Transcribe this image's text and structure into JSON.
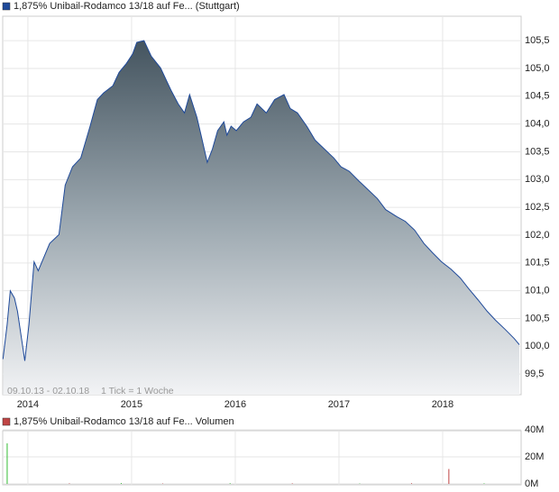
{
  "chart_data": [
    {
      "type": "area",
      "series": [
        {
          "name": "1,875% Unibail-Rodamco 13/18 auf Fe... (Stuttgart)",
          "color": "#1f4a9a",
          "x": [
            2013.76,
            2013.8,
            2013.83,
            2013.87,
            2013.9,
            2013.97,
            2014.01,
            2014.06,
            2014.1,
            2014.21,
            2014.3,
            2014.36,
            2014.43,
            2014.51,
            2014.6,
            2014.67,
            2014.73,
            2014.82,
            2014.88,
            2014.95,
            2015.01,
            2015.05,
            2015.12,
            2015.19,
            2015.28,
            2015.34,
            2015.38,
            2015.45,
            2015.51,
            2015.56,
            2015.63,
            2015.67,
            2015.73,
            2015.78,
            2015.83,
            2015.89,
            2015.92,
            2015.96,
            2016.01,
            2016.08,
            2016.15,
            2016.21,
            2016.3,
            2016.38,
            2016.47,
            2016.53,
            2016.6,
            2016.69,
            2016.77,
            2016.86,
            2016.95,
            2017.02,
            2017.1,
            2017.19,
            2017.28,
            2017.37,
            2017.45,
            2017.56,
            2017.64,
            2017.73,
            2017.82,
            2017.9,
            2017.99,
            2018.08,
            2018.17,
            2018.25,
            2018.34,
            2018.43,
            2018.51,
            2018.6,
            2018.69,
            2018.74
          ],
          "values": [
            99.77,
            100.39,
            101.0,
            100.87,
            100.63,
            99.74,
            100.39,
            101.52,
            101.36,
            101.85,
            102.01,
            102.9,
            103.23,
            103.39,
            103.96,
            104.44,
            104.56,
            104.69,
            104.93,
            105.09,
            105.26,
            105.47,
            105.5,
            105.22,
            105.01,
            104.77,
            104.61,
            104.36,
            104.2,
            104.53,
            104.12,
            103.8,
            103.31,
            103.55,
            103.88,
            104.04,
            103.8,
            103.96,
            103.88,
            104.04,
            104.12,
            104.36,
            104.2,
            104.44,
            104.53,
            104.28,
            104.2,
            103.96,
            103.71,
            103.55,
            103.39,
            103.23,
            103.15,
            102.98,
            102.82,
            102.66,
            102.46,
            102.33,
            102.25,
            102.09,
            101.85,
            101.69,
            101.52,
            101.39,
            101.23,
            101.04,
            100.84,
            100.63,
            100.47,
            100.31,
            100.14,
            100.03
          ]
        }
      ],
      "xlim": [
        2013.757,
        2018.757
      ],
      "xticks": [
        2014,
        2015,
        2016,
        2017,
        2018
      ],
      "ylim": [
        99.13,
        105.94
      ],
      "yticks": [
        {
          "value": 99.5,
          "label": "99,5"
        },
        {
          "value": 100,
          "label": "100,0"
        },
        {
          "value": 100.5,
          "label": "100,5"
        },
        {
          "value": 101,
          "label": "101,0"
        },
        {
          "value": 101.5,
          "label": "101,5"
        },
        {
          "value": 102,
          "label": "102,0"
        },
        {
          "value": 102.5,
          "label": "102,5"
        },
        {
          "value": 103,
          "label": "103,0"
        },
        {
          "value": 103.5,
          "label": "103,5"
        },
        {
          "value": 104,
          "label": "104,0"
        },
        {
          "value": 104.5,
          "label": "104,5"
        },
        {
          "value": 105,
          "label": "105,0"
        },
        {
          "value": 105.5,
          "label": "105,5"
        }
      ],
      "annotations": [
        "09.10.13 - 02.10.18",
        "1 Tick = 1 Woche"
      ],
      "grid": true
    },
    {
      "type": "bar",
      "series": [
        {
          "name": "1,875% Unibail-Rodamco 13/18 auf Fe... Volumen",
          "color": "#c04545",
          "x": [
            2013.8,
            2014.4,
            2014.9,
            2015.3,
            2015.95,
            2016.55,
            2017.2,
            2017.7,
            2018.06,
            2018.4
          ],
          "values": [
            30000000,
            400000,
            600000,
            300000,
            500000,
            400000,
            300000,
            500000,
            11000000,
            400000
          ],
          "bar_colors": [
            "#33bb33",
            "#c04545",
            "#33bb33",
            "#c04545",
            "#33bb33",
            "#c04545",
            "#33bb33",
            "#c04545",
            "#c04545",
            "#33bb33"
          ]
        }
      ],
      "xlim": [
        2013.757,
        2018.757
      ],
      "xticks": [
        2014,
        2015,
        2016,
        2017,
        2018
      ],
      "ylim": [
        0,
        40000000
      ],
      "yticks": [
        {
          "value": 0,
          "label": "0M"
        },
        {
          "value": 20000000,
          "label": "20M"
        },
        {
          "value": 40000000,
          "label": "40M"
        }
      ],
      "grid": true
    }
  ]
}
